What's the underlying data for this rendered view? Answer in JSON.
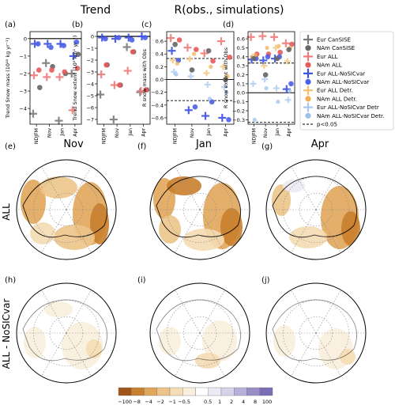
{
  "figure": {
    "header_trend": "Trend",
    "header_corr": "R(obs., simulations)",
    "cat_labels": [
      "NDJFM",
      "Nov",
      "Jan",
      "Apr"
    ],
    "panels": [
      {
        "label": "(a)",
        "ylabel": "Trend Snow mass (10¹⁰ kg yr⁻¹)",
        "yticks": [
          "0",
          "−1",
          "−2",
          "−3",
          "−4"
        ]
      },
      {
        "label": "(b)",
        "ylabel": "Trend Snow extent (10⁵ km² yr⁻¹)",
        "yticks": [
          "0",
          "−1",
          "−2",
          "−3",
          "−4",
          "−5",
          "−6",
          "−7"
        ]
      },
      {
        "label": "(c)",
        "ylabel": "R snow mass with Obs",
        "yticks": [
          "0.6",
          "0.4",
          "0.2",
          "0.0",
          "−0.2",
          "−0.4",
          "−0.6"
        ]
      },
      {
        "label": "(d)",
        "ylabel": "R snow extent with Obs",
        "yticks": [
          "0.6",
          "0.5",
          "0.4",
          "0.3",
          "0.2",
          "0.1",
          "0.0",
          "−0.1",
          "−0.2",
          "−0.3"
        ]
      }
    ],
    "legend": [
      {
        "label": "Eur CanSISE",
        "marker": "plus",
        "color": "#7a7a7a"
      },
      {
        "label": "NAm CanSISE",
        "marker": "dot",
        "color": "#666666"
      },
      {
        "label": "Eur ALL",
        "marker": "plus",
        "color": "#f07a7a"
      },
      {
        "label": "NAm ALL",
        "marker": "dot",
        "color": "#e85a5a"
      },
      {
        "label": "Eur ALL-NoSICvar",
        "marker": "plus",
        "color": "#3b4fe0"
      },
      {
        "label": "NAm ALL-NoSICvar",
        "marker": "dot",
        "color": "#4a5ee8"
      },
      {
        "label": "Eur ALL Detr.",
        "marker": "plus",
        "color": "#f5c070"
      },
      {
        "label": "NAm ALL Detr.",
        "marker": "dot",
        "color": "#f0b050"
      },
      {
        "label": "Eur ALL-NoSICvar Detr",
        "marker": "plus",
        "color": "#a8c8f0"
      },
      {
        "label": "NAm ALL-NoSICvar Detr.",
        "marker": "dot",
        "color": "#9cc0ec"
      },
      {
        "label": "p<0.05",
        "marker": "dash",
        "color": "#000000"
      }
    ],
    "col_titles": [
      "Nov",
      "Jan",
      "Apr"
    ],
    "map_labels": [
      "(e)",
      "(f)",
      "(g)",
      "(h)",
      "(i)",
      "(j)"
    ],
    "row_labels": [
      "ALL",
      "ALL - NoSICvar"
    ],
    "colorbar_ticks": [
      "−100",
      "−8",
      "−4",
      "−2",
      "−1",
      "−0.5",
      "0.5",
      "1",
      "2",
      "4",
      "8",
      "100"
    ],
    "colorbar_colors": [
      "#a0561a",
      "#c9802e",
      "#e0a65a",
      "#ecc48a",
      "#f4dcb4",
      "#faeedc",
      "#ffffff",
      "#eceaf4",
      "#d6d2ea",
      "#b8b0da",
      "#9a8ec8",
      "#7c6db4"
    ]
  },
  "chart_data": [
    {
      "type": "scatter",
      "title": "",
      "ylabel": "Trend Snow mass (10¹⁰ kg yr⁻¹)",
      "categories": [
        "NDJFM",
        "Nov",
        "Jan",
        "Apr"
      ],
      "ylim": [
        -4.9,
        0.4
      ],
      "series": [
        {
          "name": "Eur CanSISE",
          "values": [
            -4.3,
            -1.4,
            -4.7,
            -2.0
          ]
        },
        {
          "name": "NAm CanSISE",
          "values": [
            -2.8,
            -1.6,
            -2.0,
            -0.9
          ]
        },
        {
          "name": "Eur ALL",
          "values": [
            -2.1,
            -2.2,
            -2.2,
            -4.1
          ]
        },
        {
          "name": "NAm ALL",
          "values": [
            -1.8,
            -1.8,
            -1.9,
            -1.7
          ]
        },
        {
          "name": "Eur ALL-NoSICvar",
          "values": [
            -0.3,
            -0.3,
            -0.3,
            -1.0
          ]
        },
        {
          "name": "NAm ALL-NoSICvar",
          "values": [
            -0.3,
            -0.5,
            -0.4,
            -0.2
          ]
        }
      ]
    },
    {
      "type": "scatter",
      "title": "",
      "ylabel": "Trend Snow extent (10⁵ km² yr⁻¹)",
      "categories": [
        "NDJFM",
        "Nov",
        "Jan",
        "Apr"
      ],
      "ylim": [
        -7.4,
        0.4
      ],
      "series": [
        {
          "name": "Eur CanSISE",
          "values": [
            -4.9,
            -7.0,
            -0.9,
            -4.7
          ]
        },
        {
          "name": "NAm CanSISE",
          "values": [
            -2.4,
            -4.1,
            -1.3,
            -4.5
          ]
        },
        {
          "name": "Eur ALL",
          "values": [
            -3.2,
            -4.1,
            -2.9,
            -4.6
          ]
        },
        {
          "name": "NAm ALL",
          "values": [
            -2.4,
            -4.1,
            -1.3,
            -4.5
          ]
        },
        {
          "name": "Eur ALL-NoSICvar",
          "values": [
            -0.1,
            -0.2,
            -0.1,
            0.0
          ]
        },
        {
          "name": "NAm ALL-NoSICvar",
          "values": [
            -0.2,
            -0.1,
            -0.3,
            -0.1
          ]
        }
      ]
    },
    {
      "type": "scatter",
      "title": "",
      "ylabel": "R snow mass with Obs",
      "categories": [
        "NDJFM",
        "Nov",
        "Jan",
        "Apr"
      ],
      "ylim": [
        -0.7,
        0.75
      ],
      "significance": [
        0.33,
        -0.33
      ],
      "series": [
        {
          "name": "Eur ALL",
          "values": [
            0.65,
            0.5,
            0.41,
            0.6
          ]
        },
        {
          "name": "NAm ALL",
          "values": [
            0.62,
            0.47,
            0.29,
            0.35
          ]
        },
        {
          "name": "Eur ALL-NoSICvar",
          "values": [
            0.45,
            -0.48,
            -0.57,
            -0.6
          ]
        },
        {
          "name": "NAm ALL-NoSICvar",
          "values": [
            0.3,
            -0.43,
            -0.35,
            -0.63
          ]
        },
        {
          "name": "Eur ALL Detr.",
          "values": [
            0.3,
            0.32,
            0.1,
            0.2
          ]
        },
        {
          "name": "NAm ALL Detr.",
          "values": [
            0.25,
            0.4,
            0.2,
            0.05
          ]
        },
        {
          "name": "Eur ALL-NoSICvar Detr",
          "values": [
            0.12,
            0.05,
            -0.08,
            -0.12
          ]
        },
        {
          "name": "NAm ALL-NoSICvar Detr.",
          "values": [
            0.08,
            0.15,
            -0.3,
            -0.2
          ]
        },
        {
          "name": "NAm CanSISE",
          "values": [
            0.55,
            0.15,
            0.45,
            0.0
          ]
        }
      ]
    },
    {
      "type": "scatter",
      "title": "",
      "ylabel": "R snow extent with Obs",
      "categories": [
        "NDJFM",
        "Nov",
        "Jan",
        "Apr"
      ],
      "ylim": [
        -0.35,
        0.68
      ],
      "significance": [
        0.33,
        -0.33
      ],
      "series": [
        {
          "name": "Eur ALL",
          "values": [
            0.62,
            0.63,
            0.62,
            0.55
          ]
        },
        {
          "name": "NAm ALL",
          "values": [
            0.43,
            0.43,
            0.45,
            0.54
          ]
        },
        {
          "name": "Eur ALL-NoSICvar",
          "values": [
            0.37,
            0.36,
            0.38,
            0.04
          ]
        },
        {
          "name": "NAm ALL-NoSICvar",
          "values": [
            0.38,
            0.4,
            0.4,
            0.1
          ]
        },
        {
          "name": "Eur ALL Detr.",
          "values": [
            0.4,
            0.3,
            0.5,
            0.35
          ]
        },
        {
          "name": "NAm ALL Detr.",
          "values": [
            0.42,
            0.5,
            0.52,
            0.5
          ]
        },
        {
          "name": "Eur ALL-NoSICvar Detr",
          "values": [
            0.1,
            0.15,
            0.05,
            -0.08
          ]
        },
        {
          "name": "NAm ALL-NoSICvar Detr.",
          "values": [
            -0.3,
            0.05,
            -0.1,
            0.02
          ]
        },
        {
          "name": "NAm CanSISE",
          "values": [
            0.38,
            0.2,
            0.38,
            0.48
          ]
        }
      ]
    },
    {
      "type": "heatmap",
      "title": "",
      "map": "Nov ALL"
    },
    {
      "type": "heatmap",
      "title": "",
      "map": "Jan ALL"
    },
    {
      "type": "heatmap",
      "title": "",
      "map": "Apr ALL"
    },
    {
      "type": "heatmap",
      "title": "",
      "map": "Nov ALL - NoSICvar"
    },
    {
      "type": "heatmap",
      "title": "",
      "map": "Jan ALL - NoSICvar"
    },
    {
      "type": "heatmap",
      "title": "",
      "map": "Apr ALL - NoSICvar"
    }
  ]
}
